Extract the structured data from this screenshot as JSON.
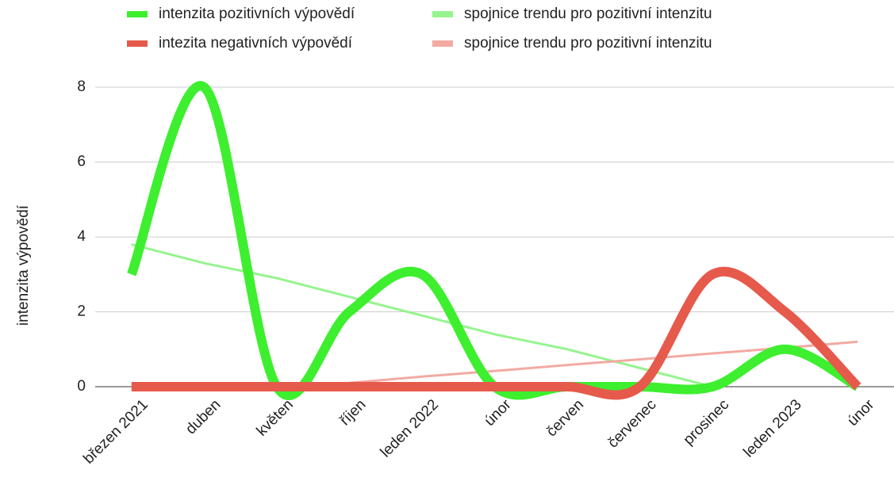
{
  "chart_data": {
    "type": "line",
    "y_label": "intenzita výpovědí",
    "categories": [
      "březen 2021",
      "duben",
      "květen",
      "říjen",
      "leden 2022",
      "únor",
      "červen",
      "červenec",
      "prosinec",
      "leden 2023",
      "únor"
    ],
    "series": [
      {
        "name": "intenzita pozitivních výpovědí",
        "color": "#3def2e",
        "values": [
          3,
          8,
          0,
          2,
          3,
          0,
          0,
          0,
          0,
          1,
          0
        ]
      },
      {
        "name": "spojnice trendu pro pozitivní intenzitu",
        "color": "#96f48f",
        "trendline": true,
        "values": [
          3.8,
          3.3,
          2.9,
          2.4,
          1.9,
          1.4,
          1.0,
          0.5,
          0,
          null,
          null
        ]
      },
      {
        "name": "intezita negativních výpovědí",
        "color": "#e65a4c",
        "values": [
          0,
          0,
          0,
          0,
          0,
          0,
          0,
          0,
          3,
          2,
          0
        ]
      },
      {
        "name": "spojnice trendu pro pozitivní intenzitu",
        "color": "#f2aaa3",
        "trendline": true,
        "values": [
          null,
          null,
          null,
          0.1,
          0.27,
          0.42,
          0.58,
          0.73,
          0.89,
          1.04,
          1.2
        ]
      }
    ],
    "ylim": [
      0,
      8
    ],
    "yticks": [
      0,
      2,
      4,
      6,
      8
    ],
    "grid": true,
    "legend": "top"
  }
}
